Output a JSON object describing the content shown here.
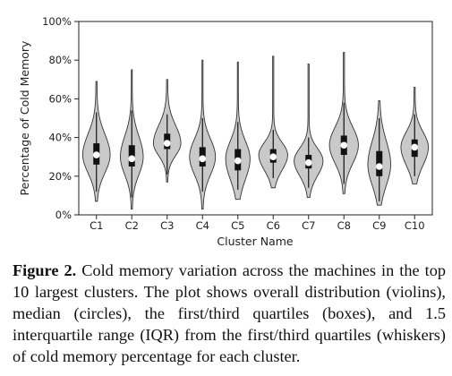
{
  "chart_data": {
    "type": "violin",
    "title": "",
    "xlabel": "Cluster Name",
    "ylabel": "Percentage of Cold Memory",
    "ylim": [
      0,
      100
    ],
    "yticks": [
      "0%",
      "20%",
      "40%",
      "60%",
      "80%",
      "100%"
    ],
    "grid": false,
    "colors": {
      "violin_fill": "#c9c9c9",
      "violin_stroke": "#333333",
      "box": "#111111",
      "median": "#ffffff"
    },
    "categories": [
      "C1",
      "C2",
      "C3",
      "C4",
      "C5",
      "C6",
      "C7",
      "C8",
      "C9",
      "C10"
    ],
    "clusters": [
      {
        "name": "C1",
        "min": 7,
        "max": 69,
        "q1": 26,
        "median": 31,
        "q3": 37,
        "whisker_low": 12,
        "whisker_high": 53,
        "mode": 31,
        "width": 0.9
      },
      {
        "name": "C2",
        "min": 3,
        "max": 75,
        "q1": 25,
        "median": 29,
        "q3": 36,
        "whisker_low": 9,
        "whisker_high": 54,
        "mode": 30,
        "width": 0.75
      },
      {
        "name": "C3",
        "min": 17,
        "max": 70,
        "q1": 34,
        "median": 37,
        "q3": 42,
        "whisker_low": 21,
        "whisker_high": 52,
        "mode": 37,
        "width": 0.9
      },
      {
        "name": "C4",
        "min": 3,
        "max": 80,
        "q1": 25,
        "median": 29,
        "q3": 35,
        "whisker_low": 12,
        "whisker_high": 50,
        "mode": 30,
        "width": 0.85
      },
      {
        "name": "C5",
        "min": 8,
        "max": 79,
        "q1": 23,
        "median": 28,
        "q3": 34,
        "whisker_low": 13,
        "whisker_high": 48,
        "mode": 29,
        "width": 0.8
      },
      {
        "name": "C6",
        "min": 14,
        "max": 82,
        "q1": 27,
        "median": 30,
        "q3": 34,
        "whisker_low": 19,
        "whisker_high": 44,
        "mode": 31,
        "width": 0.95
      },
      {
        "name": "C7",
        "min": 9,
        "max": 78,
        "q1": 24,
        "median": 27,
        "q3": 31,
        "whisker_low": 14,
        "whisker_high": 40,
        "mode": 28,
        "width": 0.95
      },
      {
        "name": "C8",
        "min": 11,
        "max": 84,
        "q1": 31,
        "median": 36,
        "q3": 41,
        "whisker_low": 16,
        "whisker_high": 58,
        "mode": 36,
        "width": 0.95
      },
      {
        "name": "C9",
        "min": 5,
        "max": 59,
        "q1": 20,
        "median": 25,
        "q3": 33,
        "whisker_low": 7,
        "whisker_high": 50,
        "mode": 26,
        "width": 0.75
      },
      {
        "name": "C10",
        "min": 16,
        "max": 66,
        "q1": 30,
        "median": 35,
        "q3": 39,
        "whisker_low": 20,
        "whisker_high": 52,
        "mode": 35,
        "width": 0.9
      }
    ]
  },
  "caption": {
    "label": "Figure 2.",
    "text": "Cold memory variation across the machines in the top 10 largest clusters. The plot shows overall distribution (violins), median (circles), the first/third quartiles (boxes), and 1.5 interquartile range (IQR) from the first/third quartiles (whiskers) of cold memory percentage for each cluster."
  }
}
